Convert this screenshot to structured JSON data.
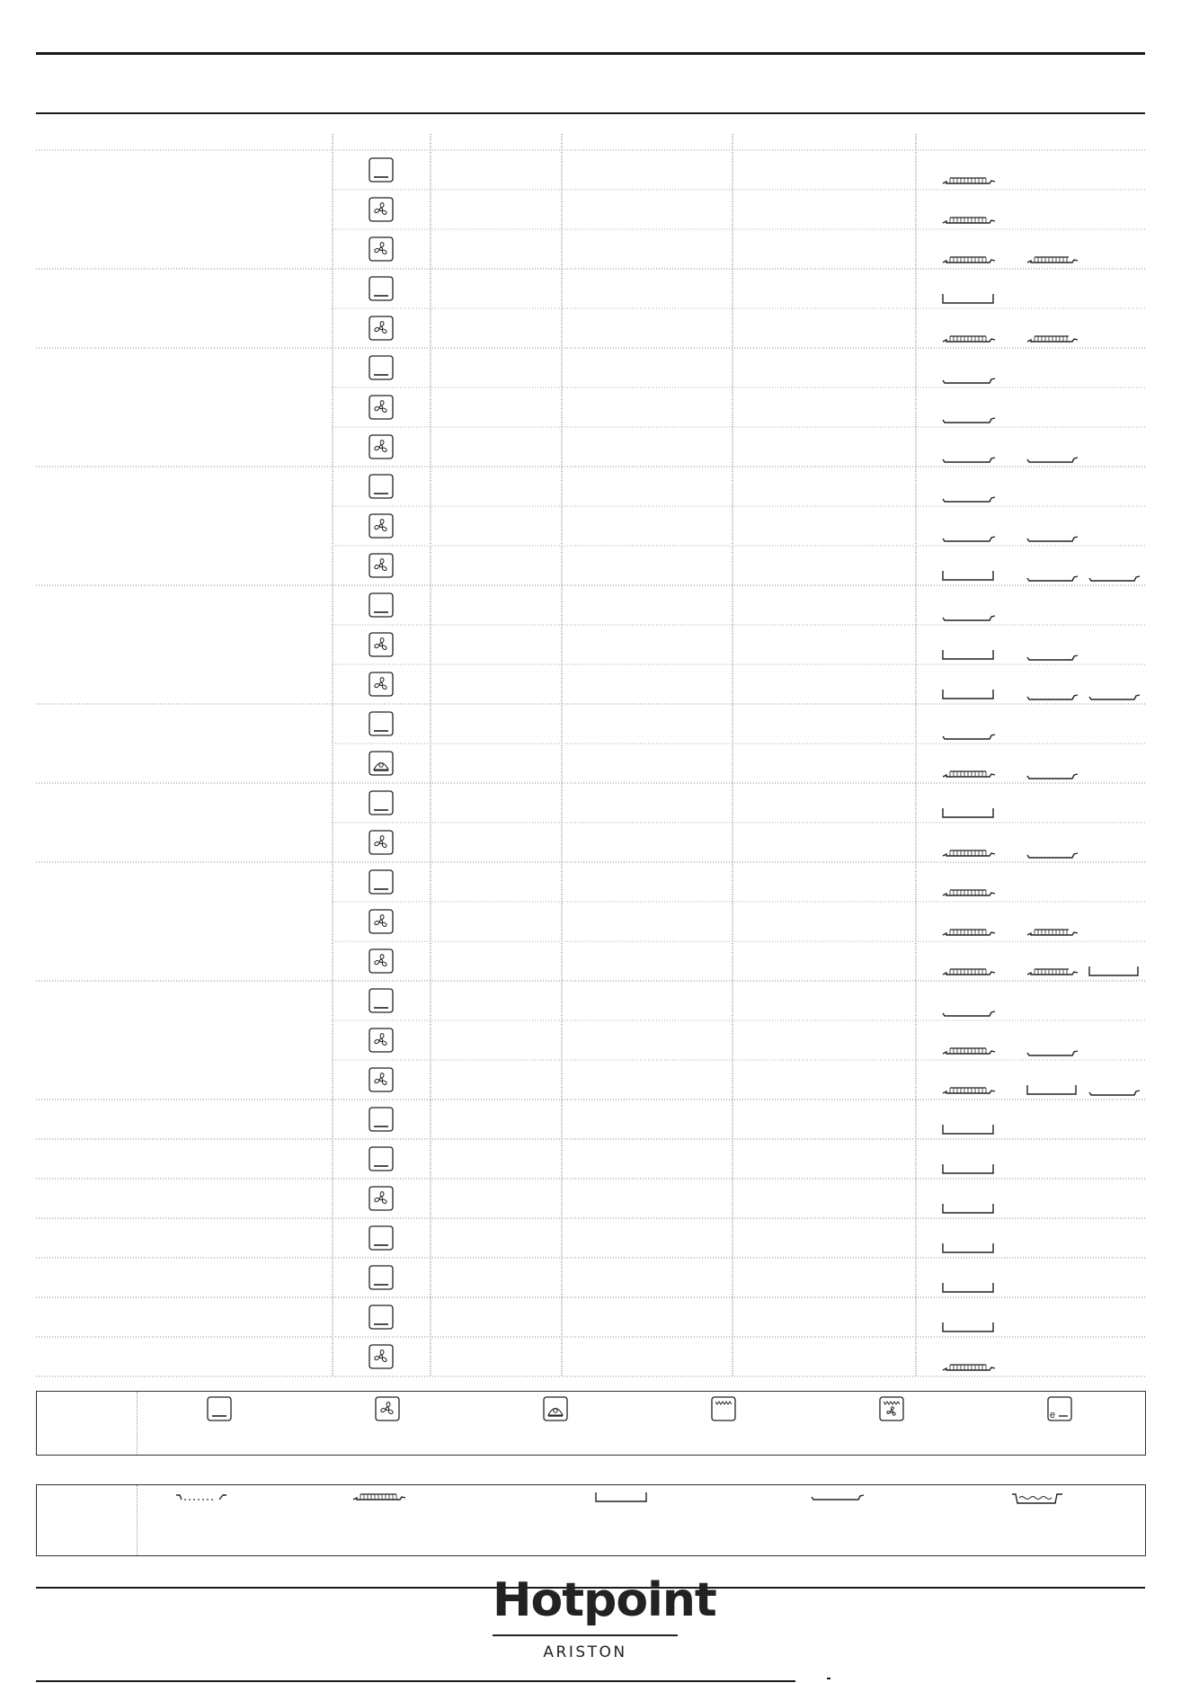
{
  "table": {
    "groups": [
      {
        "rows": [
          {
            "mode": "static-oven",
            "acc": [
              "grill-rack"
            ]
          },
          {
            "mode": "fan-oven",
            "acc": [
              "grill-rack"
            ]
          },
          {
            "mode": "fan-oven",
            "acc": [
              "grill-rack",
              "grill-rack"
            ]
          }
        ]
      },
      {
        "rows": [
          {
            "mode": "static-oven",
            "acc": [
              "deep-tray"
            ]
          },
          {
            "mode": "fan-oven",
            "acc": [
              "grill-rack",
              "grill-rack"
            ]
          }
        ]
      },
      {
        "rows": [
          {
            "mode": "static-oven",
            "acc": [
              "baking-tray"
            ]
          },
          {
            "mode": "fan-oven",
            "acc": [
              "baking-tray"
            ]
          },
          {
            "mode": "fan-oven",
            "acc": [
              "baking-tray",
              "baking-tray"
            ]
          }
        ]
      },
      {
        "rows": [
          {
            "mode": "static-oven",
            "acc": [
              "baking-tray"
            ]
          },
          {
            "mode": "fan-oven",
            "acc": [
              "baking-tray",
              "baking-tray"
            ]
          },
          {
            "mode": "fan-oven",
            "acc": [
              "deep-tray",
              "baking-tray",
              "baking-tray"
            ]
          }
        ]
      },
      {
        "rows": [
          {
            "mode": "static-oven",
            "acc": [
              "baking-tray"
            ]
          },
          {
            "mode": "fan-oven",
            "acc": [
              "deep-tray",
              "baking-tray"
            ]
          },
          {
            "mode": "fan-oven",
            "acc": [
              "deep-tray",
              "baking-tray",
              "baking-tray"
            ]
          }
        ]
      },
      {
        "rows": [
          {
            "mode": "static-oven",
            "acc": [
              "baking-tray"
            ]
          },
          {
            "mode": "pizza-oven",
            "acc": [
              "grill-rack",
              "baking-tray"
            ]
          }
        ]
      },
      {
        "rows": [
          {
            "mode": "static-oven",
            "acc": [
              "deep-tray"
            ]
          },
          {
            "mode": "fan-oven",
            "acc": [
              "grill-rack",
              "baking-tray"
            ]
          }
        ]
      },
      {
        "rows": [
          {
            "mode": "static-oven",
            "acc": [
              "grill-rack"
            ]
          },
          {
            "mode": "fan-oven",
            "acc": [
              "grill-rack",
              "grill-rack"
            ]
          },
          {
            "mode": "fan-oven",
            "acc": [
              "grill-rack",
              "grill-rack",
              "deep-tray"
            ]
          }
        ]
      },
      {
        "rows": [
          {
            "mode": "static-oven",
            "acc": [
              "baking-tray"
            ]
          },
          {
            "mode": "fan-oven",
            "acc": [
              "grill-rack",
              "baking-tray"
            ]
          },
          {
            "mode": "fan-oven",
            "acc": [
              "grill-rack",
              "deep-tray",
              "baking-tray"
            ]
          }
        ]
      },
      {
        "rows": [
          {
            "mode": "static-oven",
            "acc": [
              "deep-tray"
            ]
          }
        ]
      },
      {
        "rows": [
          {
            "mode": "static-oven",
            "acc": [
              "deep-tray"
            ]
          }
        ]
      },
      {
        "rows": [
          {
            "mode": "fan-oven",
            "acc": [
              "deep-tray"
            ]
          }
        ]
      },
      {
        "rows": [
          {
            "mode": "static-oven",
            "acc": [
              "deep-tray"
            ]
          }
        ]
      },
      {
        "rows": [
          {
            "mode": "static-oven",
            "acc": [
              "deep-tray"
            ]
          }
        ]
      },
      {
        "rows": [
          {
            "mode": "static-oven",
            "acc": [
              "deep-tray"
            ]
          }
        ]
      },
      {
        "rows": [
          {
            "mode": "fan-oven",
            "acc": [
              "grill-rack"
            ]
          }
        ]
      }
    ]
  },
  "legend_modes": {
    "items": [
      "static-oven-icon",
      "fan-oven-icon",
      "pizza-oven-icon",
      "top-grill-icon",
      "fan-grill-icon",
      "eco-oven-icon"
    ]
  },
  "legend_accessories": {
    "items": [
      "wire-shelf-icon",
      "grill-rack-icon",
      "deep-tray-icon",
      "baking-tray-icon",
      "drip-tray-icon"
    ]
  },
  "brand": {
    "name": "Hotpoint",
    "sub": "ARISTON"
  }
}
